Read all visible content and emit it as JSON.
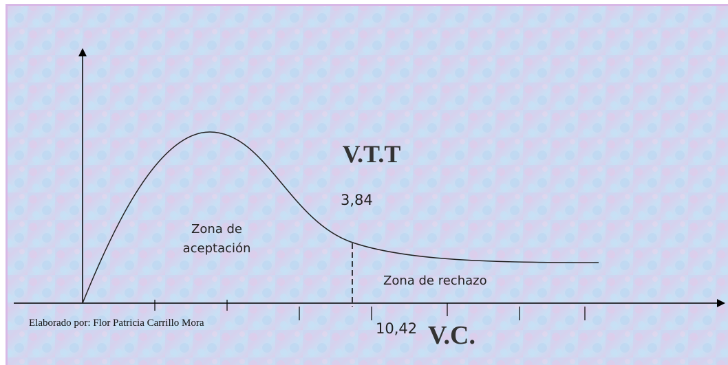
{
  "diagram": {
    "critical_label": "V.T.T",
    "critical_value": "3,84",
    "acceptance_zone": [
      "Zona de",
      "aceptación"
    ],
    "rejection_zone": "Zona de rechazo",
    "credit": "Elaborado por: Flor Patricia Carrillo Mora",
    "computed_value": "10,42",
    "computed_label": "V.C."
  }
}
